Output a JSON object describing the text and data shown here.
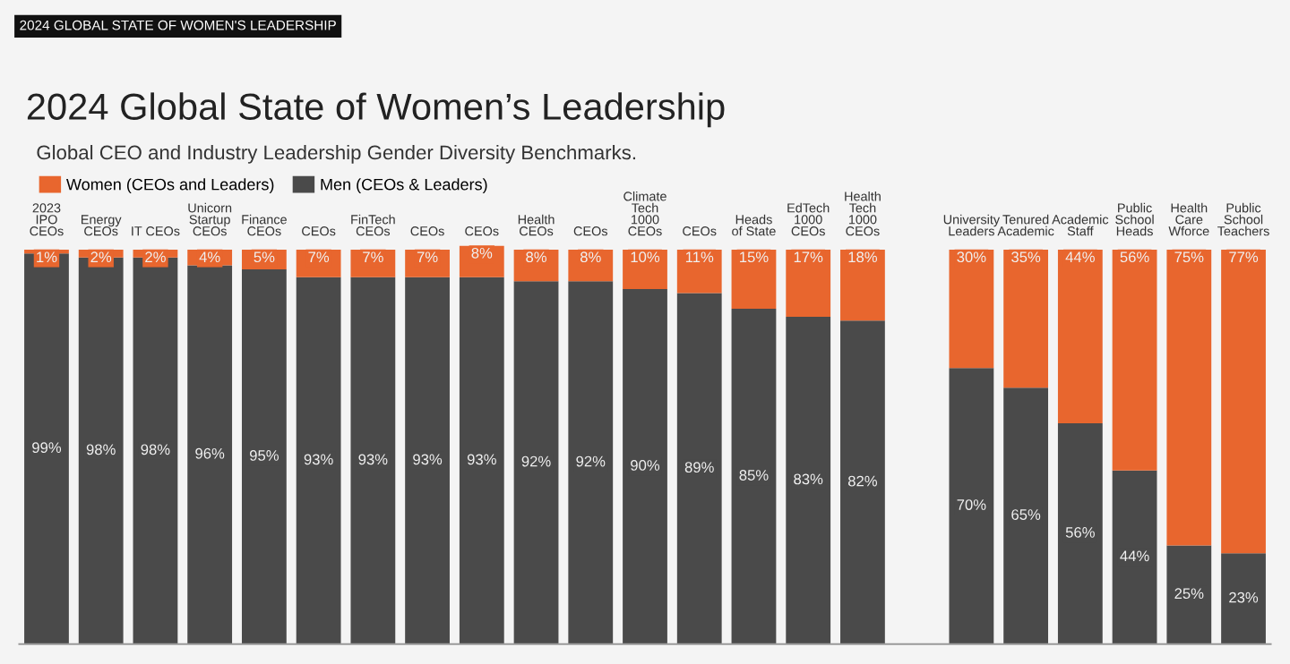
{
  "chart_data": {
    "type": "bar",
    "stacked": true,
    "title": "2024 Global State of Women’s Leadership",
    "subtitle": "Global CEO and Industry Leadership Gender Diversity Benchmarks.",
    "annotations": [
      "2024 GLOBAL STATE OF WOMEN'S LEADERSHIP"
    ],
    "categories": [
      "2023\nIPO\nCEOs",
      "Energy\nCEOs",
      "IT CEOs",
      "Unicorn\nStartup\nCEOs",
      "Finance\nCEOs",
      "CEOs",
      "FinTech\nCEOs",
      "CEOs",
      "CEOs",
      "Health\nCEOs",
      "CEOs",
      "Climate\nTech\n1000\nCEOs",
      "CEOs",
      "Heads\nof State",
      "EdTech\n1000\nCEOs",
      "Health\nTech\n1000\nCEOs",
      null,
      "University\nLeaders",
      "Tenured\nAcademic",
      "Academic\nStaff",
      "Public\nSchool\nHeads",
      "Health\nCare\nWforce",
      "Public\nSchool\nTeachers"
    ],
    "series": [
      {
        "name": "Men (CEOs & Leaders)",
        "color": "#4a4a4a",
        "values": [
          99,
          98,
          98,
          96,
          95,
          93,
          93,
          93,
          93,
          92,
          92,
          90,
          89,
          85,
          83,
          82,
          null,
          70,
          65,
          56,
          44,
          25,
          23
        ],
        "value_labels": [
          "99%",
          "98%",
          "98%",
          "96%",
          "95%",
          "93%",
          "93%",
          "93%",
          "93%",
          "92%",
          "92%",
          "90%",
          "89%",
          "85%",
          "83%",
          "82%",
          null,
          "70%",
          "65%",
          "56%",
          "44%",
          "25%",
          "23%"
        ]
      },
      {
        "name": "Women (CEOs and Leaders)",
        "color": "#e8662e",
        "values": [
          1,
          2,
          2,
          4,
          5,
          7,
          7,
          7,
          8,
          8,
          8,
          10,
          11,
          15,
          17,
          18,
          null,
          30,
          35,
          44,
          56,
          75,
          77
        ],
        "value_labels": [
          "1%",
          "2%",
          "2%",
          "4%",
          "5%",
          "7%",
          "7%",
          "7%",
          "8%",
          "8%",
          "8%",
          "10%",
          "11%",
          "15%",
          "17%",
          "18%",
          null,
          "30%",
          "35%",
          "44%",
          "56%",
          "75%",
          "77%"
        ]
      }
    ],
    "legend": "top left"
  }
}
